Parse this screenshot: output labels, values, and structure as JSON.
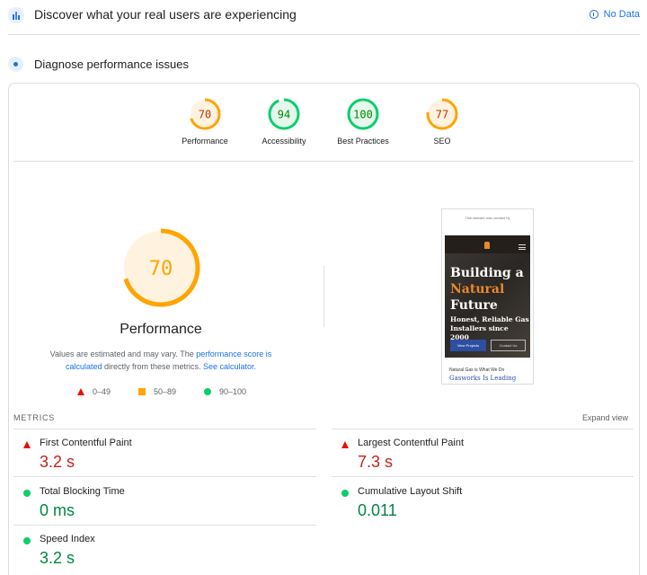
{
  "crux": {
    "title": "Discover what your real users are experiencing",
    "no_data": "No Data"
  },
  "diagnose": {
    "title": "Diagnose performance issues"
  },
  "gauges": [
    {
      "score": "70",
      "label": "Performance",
      "value": 70,
      "color": "#ffa400",
      "text_color": "#c33300"
    },
    {
      "score": "94",
      "label": "Accessibility",
      "value": 94,
      "color": "#0cce6b",
      "text_color": "#008800"
    },
    {
      "score": "100",
      "label": "Best Practices",
      "value": 100,
      "color": "#0cce6b",
      "text_color": "#008800"
    },
    {
      "score": "77",
      "label": "SEO",
      "value": 77,
      "color": "#ffa400",
      "text_color": "#c33300"
    }
  ],
  "performance": {
    "score": "70",
    "title": "Performance",
    "note_prefix": "Values are estimated and may vary. The ",
    "note_link": "performance score is calculated",
    "note_mid": " directly from these metrics. ",
    "note_calc": "See calculator.",
    "legend": {
      "poor": "0–49",
      "avg": "50–89",
      "good": "90–100"
    }
  },
  "screenshot": {
    "topbar": "This website was created by",
    "heading_line1": "Building a",
    "heading_line2": "Natural",
    "heading_line3": "Future",
    "subheading": "Honest, Reliable Gas Installers since 2000",
    "btn_primary": "View Projects",
    "btn_secondary": "Contact Us",
    "below1": "Natural Gas is What We Do",
    "below2": "Gasworks Is Leading"
  },
  "metrics": {
    "header": "METRICS",
    "expand": "Expand view",
    "items": [
      {
        "name": "First Contentful Paint",
        "value": "3.2 s",
        "status": "poor"
      },
      {
        "name": "Largest Contentful Paint",
        "value": "7.3 s",
        "status": "poor"
      },
      {
        "name": "Total Blocking Time",
        "value": "0 ms",
        "status": "good"
      },
      {
        "name": "Cumulative Layout Shift",
        "value": "0.011",
        "status": "good"
      },
      {
        "name": "Speed Index",
        "value": "3.2 s",
        "status": "good"
      }
    ]
  },
  "colors": {
    "poor": "#eb0f00",
    "average": "#ffa400",
    "good": "#0cce6b",
    "link": "#1a73e8"
  }
}
